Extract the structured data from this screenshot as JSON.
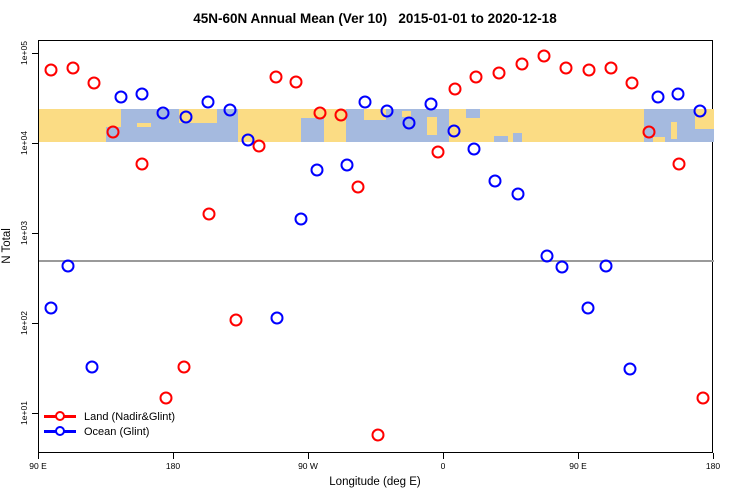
{
  "title": "45N-60N Annual Mean (Ver 10)   2015-01-01 to 2020-12-18",
  "chart_data": {
    "type": "scatter",
    "title": "45N-60N Annual Mean (Ver 10)   2015-01-01 to 2020-12-18",
    "xlabel": "Longitude (deg E)",
    "ylabel": "N Total",
    "x_axis": {
      "description": "Longitude wrapped: 90E eastward around the globe to 180 again",
      "range": [
        90,
        540
      ],
      "ticks": [
        {
          "value": 90,
          "label": "90 E"
        },
        {
          "value": 180,
          "label": "180"
        },
        {
          "value": 270,
          "label": "90 W"
        },
        {
          "value": 360,
          "label": "0"
        },
        {
          "value": 450,
          "label": "90 E"
        },
        {
          "value": 540,
          "label": "180"
        }
      ]
    },
    "y_axis": {
      "scale": "log10",
      "range": [
        3.6,
        140000
      ],
      "ticks": [
        {
          "value": 100000,
          "label": "1e+05"
        },
        {
          "value": 10000,
          "label": "1e+04"
        },
        {
          "value": 1000,
          "label": "1e+03"
        },
        {
          "value": 100,
          "label": "1e+02"
        },
        {
          "value": 10,
          "label": "1e+01"
        }
      ]
    },
    "reference_line_y": 500,
    "map_band": {
      "y_min": 10500,
      "y_max": 24500,
      "land_color": "#FBDC84",
      "ocean_color": "#A5BADF",
      "description": "45N-60N world-map latitude strip overlay"
    },
    "legend": {
      "position": "bottom-left",
      "items": [
        {
          "label": "Land (Nadir&Glint)",
          "color": "#FF0000"
        },
        {
          "label": "Ocean (Glint)",
          "color": "#0000FF"
        }
      ]
    },
    "series": [
      {
        "name": "Land (Nadir&Glint)",
        "color": "#FF0000",
        "points": [
          [
            98,
            66000
          ],
          [
            112.7,
            70000
          ],
          [
            126.7,
            48000
          ],
          [
            139.3,
            13600
          ],
          [
            158.7,
            6000
          ],
          [
            174.7,
            15
          ],
          [
            186.7,
            33
          ],
          [
            203.3,
            1670
          ],
          [
            221.3,
            110
          ],
          [
            236.7,
            9500
          ],
          [
            248,
            55000
          ],
          [
            261.3,
            49000
          ],
          [
            277.3,
            22000
          ],
          [
            291.3,
            21000
          ],
          [
            302.7,
            3300
          ],
          [
            316,
            5.9
          ],
          [
            356,
            8100
          ],
          [
            367.3,
            41000
          ],
          [
            381.3,
            55000
          ],
          [
            396.7,
            61000
          ],
          [
            412,
            78000
          ],
          [
            426.7,
            95000
          ],
          [
            441.3,
            70000
          ],
          [
            456.7,
            66000
          ],
          [
            471.3,
            70000
          ],
          [
            485.3,
            48000
          ],
          [
            496.7,
            13600
          ],
          [
            516.7,
            6000
          ],
          [
            532.7,
            15
          ]
        ]
      },
      {
        "name": "Ocean (Glint)",
        "color": "#0000FF",
        "points": [
          [
            98,
            150
          ],
          [
            109.3,
            440
          ],
          [
            125.3,
            33
          ],
          [
            144.7,
            33000
          ],
          [
            158.7,
            36000
          ],
          [
            172.7,
            22000
          ],
          [
            188,
            20000
          ],
          [
            202.7,
            29000
          ],
          [
            217.3,
            24000
          ],
          [
            229.3,
            11000
          ],
          [
            248.7,
            118
          ],
          [
            264.7,
            1450
          ],
          [
            275.3,
            5200
          ],
          [
            295.3,
            5900
          ],
          [
            307.3,
            29000
          ],
          [
            322,
            23000
          ],
          [
            336.7,
            17000
          ],
          [
            351.3,
            28000
          ],
          [
            366.7,
            14000
          ],
          [
            380,
            8800
          ],
          [
            394,
            3900
          ],
          [
            409.3,
            2800
          ],
          [
            428.7,
            570
          ],
          [
            438.7,
            430
          ],
          [
            456,
            150
          ],
          [
            468,
            440
          ],
          [
            484,
            32
          ],
          [
            502.7,
            33000
          ],
          [
            516,
            36000
          ],
          [
            530.7,
            23000
          ]
        ]
      }
    ]
  }
}
